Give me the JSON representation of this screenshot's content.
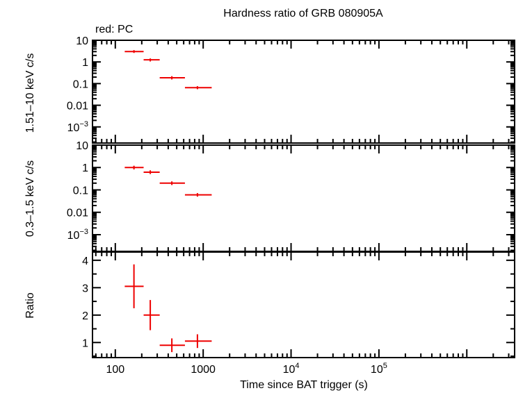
{
  "chart_data": {
    "type": "scatter",
    "title": "Hardness ratio of GRB 080905A",
    "legend_label": "red: PC",
    "xlabel": "Time since BAT trigger (s)",
    "x_scale": "log",
    "xlim": [
      55,
      3500000
    ],
    "x_ticks": [
      {
        "value": 100,
        "label": "100"
      },
      {
        "value": 1000,
        "label": "1000"
      },
      {
        "value": 10000,
        "base": "10",
        "exp": "4"
      },
      {
        "value": 100000,
        "base": "10",
        "exp": "5"
      }
    ],
    "series_color": "#ee0000",
    "panels": [
      {
        "ylabel": "1.51–10 keV c/s",
        "y_scale": "log",
        "ylim": [
          0.00018,
          10
        ],
        "y_ticks": [
          {
            "value": 10,
            "label": "10"
          },
          {
            "value": 1,
            "label": "1"
          },
          {
            "value": 0.1,
            "label": "0.1"
          },
          {
            "value": 0.01,
            "label": "0.01"
          },
          {
            "value": 0.001,
            "base": "10",
            "exp": "−3"
          }
        ],
        "points": [
          {
            "x": 163,
            "xerr": [
              128,
              210
            ],
            "y": 3.0,
            "yerr": [
              2.6,
              3.5
            ]
          },
          {
            "x": 250,
            "xerr": [
              210,
              320
            ],
            "y": 1.25,
            "yerr": [
              1.05,
              1.45
            ]
          },
          {
            "x": 440,
            "xerr": [
              320,
              620
            ],
            "y": 0.185,
            "yerr": [
              0.155,
              0.22
            ]
          },
          {
            "x": 860,
            "xerr": [
              620,
              1250
            ],
            "y": 0.065,
            "yerr": [
              0.055,
              0.076
            ]
          }
        ]
      },
      {
        "ylabel": "0.3–1.5 keV c/s",
        "y_scale": "log",
        "ylim": [
          0.00018,
          10
        ],
        "y_ticks": [
          {
            "value": 10,
            "label": "10"
          },
          {
            "value": 1,
            "label": "1"
          },
          {
            "value": 0.1,
            "label": "0.1"
          },
          {
            "value": 0.01,
            "label": "0.01"
          },
          {
            "value": 0.001,
            "base": "10",
            "exp": "−3"
          }
        ],
        "points": [
          {
            "x": 163,
            "xerr": [
              128,
              210
            ],
            "y": 1.0,
            "yerr": [
              0.82,
              1.2
            ]
          },
          {
            "x": 250,
            "xerr": [
              210,
              320
            ],
            "y": 0.62,
            "yerr": [
              0.51,
              0.75
            ]
          },
          {
            "x": 440,
            "xerr": [
              320,
              620
            ],
            "y": 0.2,
            "yerr": [
              0.165,
              0.24
            ]
          },
          {
            "x": 860,
            "xerr": [
              620,
              1250
            ],
            "y": 0.06,
            "yerr": [
              0.05,
              0.072
            ]
          }
        ]
      },
      {
        "ylabel": "Ratio",
        "y_scale": "linear",
        "ylim": [
          0.45,
          4.3
        ],
        "y_ticks": [
          {
            "value": 1,
            "label": "1"
          },
          {
            "value": 2,
            "label": "2"
          },
          {
            "value": 3,
            "label": "3"
          },
          {
            "value": 4,
            "label": "4"
          }
        ],
        "points": [
          {
            "x": 163,
            "xerr": [
              128,
              210
            ],
            "y": 3.05,
            "yerr": [
              2.25,
              3.85
            ]
          },
          {
            "x": 250,
            "xerr": [
              210,
              320
            ],
            "y": 2.0,
            "yerr": [
              1.45,
              2.55
            ]
          },
          {
            "x": 440,
            "xerr": [
              320,
              620
            ],
            "y": 0.9,
            "yerr": [
              0.65,
              1.15
            ]
          },
          {
            "x": 860,
            "xerr": [
              620,
              1250
            ],
            "y": 1.05,
            "yerr": [
              0.8,
              1.3
            ]
          }
        ]
      }
    ]
  }
}
